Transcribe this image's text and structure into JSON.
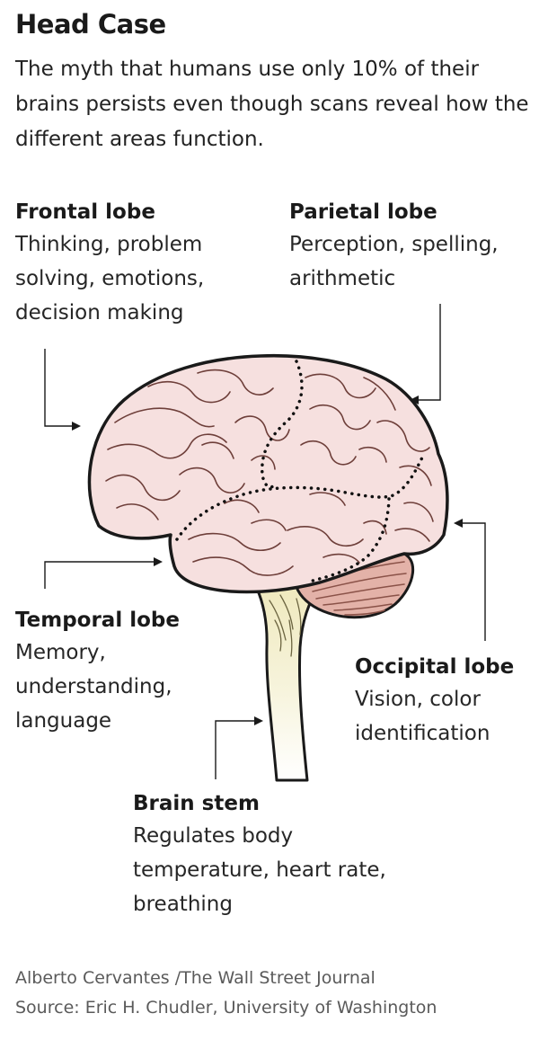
{
  "title": "Head Case",
  "subtitle": "The myth that humans use only 10% of their brains persists even though scans reveal how the different areas function.",
  "lobes": {
    "frontal": {
      "name": "Frontal lobe",
      "desc": [
        "Thinking, problem",
        "solving, emotions,",
        "decision making"
      ]
    },
    "parietal": {
      "name": "Parietal lobe",
      "desc": [
        "Perception, spelling,",
        "arithmetic"
      ]
    },
    "temporal": {
      "name": "Temporal lobe",
      "desc": [
        "Memory,",
        "understanding,",
        "language"
      ]
    },
    "occipital": {
      "name": "Occipital lobe",
      "desc": [
        "Vision, color",
        "identification"
      ]
    },
    "stem": {
      "name": "Brain stem",
      "desc": [
        "Regulates body",
        "temperature, heart rate,",
        "breathing"
      ]
    }
  },
  "credits": {
    "author": "Alberto Cervantes /The Wall Street Journal",
    "source": "Source: Eric H. Chudler, University of Washington"
  },
  "colors": {
    "cerebrum": "#f6e0df",
    "cerebellum": "#e3b2a8",
    "stem_top": "#f1ecc6",
    "stem_bottom": "#ffffff",
    "outline": "#1a1a1a"
  }
}
